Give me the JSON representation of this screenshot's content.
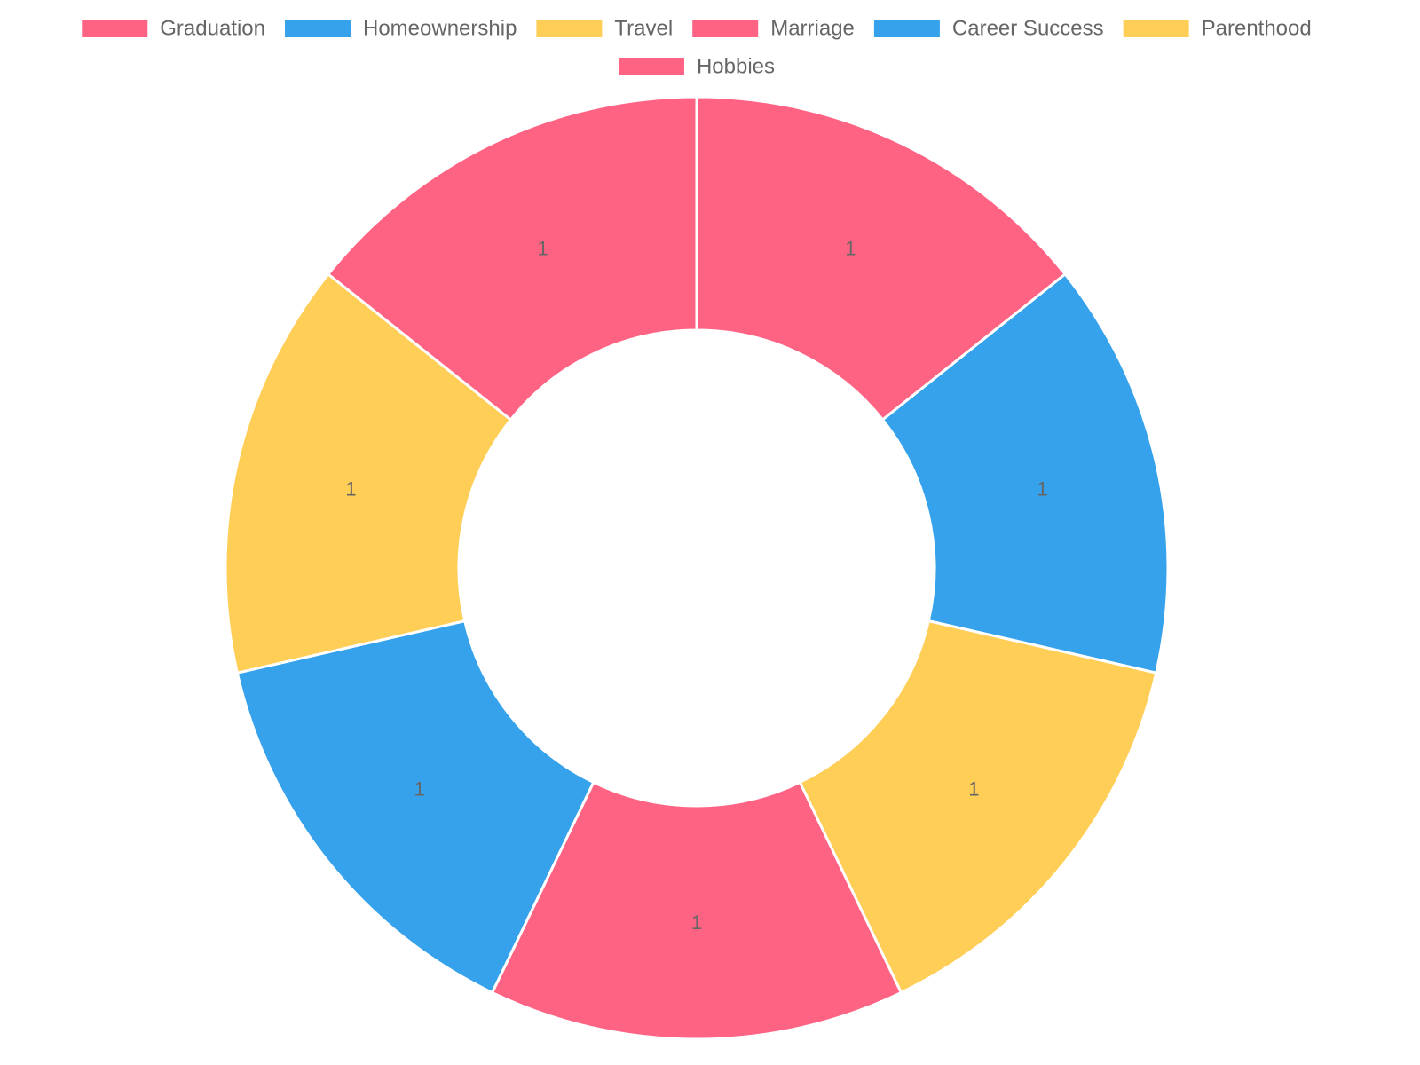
{
  "chart_data": {
    "type": "pie",
    "variant": "doughnut",
    "categories": [
      "Graduation",
      "Homeownership",
      "Travel",
      "Marriage",
      "Career Success",
      "Parenthood",
      "Hobbies"
    ],
    "values": [
      1,
      1,
      1,
      1,
      1,
      1,
      1
    ],
    "data_labels": [
      "1",
      "1",
      "1",
      "1",
      "1",
      "1",
      "1"
    ],
    "colors": [
      "#FF6384",
      "#36A2EB",
      "#FFCE56",
      "#FF6384",
      "#36A2EB",
      "#FFCE56",
      "#FF6384"
    ],
    "legend_position": "top",
    "title": "",
    "grid": false
  }
}
